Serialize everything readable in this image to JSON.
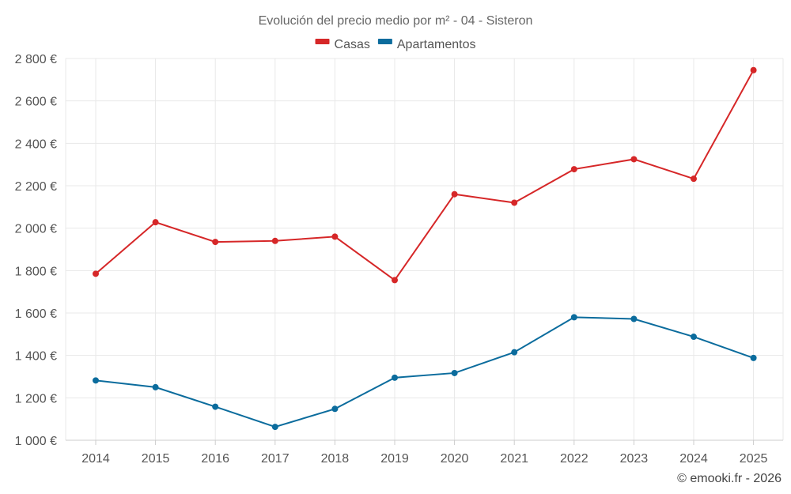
{
  "chart_data": {
    "type": "line",
    "title": "Evolución del precio medio por m² - 04 - Sisteron",
    "categories": [
      "2014",
      "2015",
      "2016",
      "2017",
      "2018",
      "2019",
      "2020",
      "2021",
      "2022",
      "2023",
      "2024",
      "2025"
    ],
    "series": [
      {
        "name": "Casas",
        "color": "#d62728",
        "values": [
          1785,
          2028,
          1935,
          1940,
          1960,
          1755,
          2160,
          2120,
          2278,
          2325,
          2233,
          2745
        ]
      },
      {
        "name": "Apartamentos",
        "color": "#0b6c9d",
        "values": [
          1282,
          1250,
          1158,
          1063,
          1148,
          1295,
          1317,
          1415,
          1580,
          1572,
          1488,
          1388
        ]
      }
    ],
    "ylim": [
      1000,
      2800
    ],
    "yticks": [
      1000,
      1200,
      1400,
      1600,
      1800,
      2000,
      2200,
      2400,
      2600,
      2800
    ],
    "ytick_labels": [
      "1 000 €",
      "1 200 €",
      "1 400 €",
      "1 600 €",
      "1 800 €",
      "2 000 €",
      "2 200 €",
      "2 400 €",
      "2 600 €",
      "2 800 €"
    ],
    "xlabel": "",
    "ylabel": "",
    "grid": true,
    "legend_position": "top-center"
  },
  "credit": "© emooki.fr - 2026"
}
